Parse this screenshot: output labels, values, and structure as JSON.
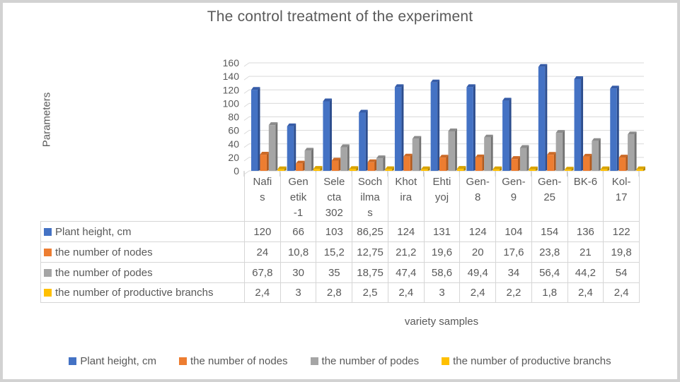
{
  "chart_data": {
    "type": "bar",
    "style": "3d-clustered-column",
    "title": "The control treatment of the experiment",
    "xlabel": "variety samples",
    "ylabel": "Parameters",
    "ylim": [
      0,
      160
    ],
    "yticks": [
      0,
      20,
      40,
      60,
      80,
      100,
      120,
      140,
      160
    ],
    "grid": true,
    "legend_position": "bottom",
    "decimal_separator": ",",
    "categories": [
      "Nafis",
      "Genetik-1",
      "Selecta 302",
      "Sochilmas",
      "Khotira",
      "Ehtiyoj",
      "Gen-8",
      "Gen-9",
      "Gen-25",
      "BK-6",
      "Kol-17"
    ],
    "category_display_lines": [
      [
        "Nafi",
        "s"
      ],
      [
        "Gen",
        "etik",
        "-1"
      ],
      [
        "Sele",
        "cta",
        "302"
      ],
      [
        "Soch",
        "ilma",
        "s"
      ],
      [
        "Khot",
        "ira"
      ],
      [
        "Ehti",
        "yoj"
      ],
      [
        "Gen-",
        "8"
      ],
      [
        "Gen-",
        "9"
      ],
      [
        "Gen-",
        "25"
      ],
      [
        "BK-6"
      ],
      [
        "Kol-",
        "17"
      ]
    ],
    "series": [
      {
        "name": "Plant height, cm",
        "color": "#4472C4",
        "side_color": "#2C4D8E",
        "top_color": "#365CA8",
        "values": [
          120,
          66,
          103,
          86.25,
          124,
          131,
          124,
          104,
          154,
          136,
          122
        ],
        "display": [
          "120",
          "66",
          "103",
          "86,25",
          "124",
          "131",
          "124",
          "104",
          "154",
          "136",
          "122"
        ]
      },
      {
        "name": "the number of nodes",
        "color": "#ED7D31",
        "side_color": "#B25A1D",
        "top_color": "#CC6A27",
        "values": [
          24,
          10.8,
          15.2,
          12.75,
          21.2,
          19.6,
          20,
          17.6,
          23.8,
          21,
          19.8
        ],
        "display": [
          "24",
          "10,8",
          "15,2",
          "12,75",
          "21,2",
          "19,6",
          "20",
          "17,6",
          "23,8",
          "21",
          "19,8"
        ]
      },
      {
        "name": "the number of podes",
        "color": "#A5A5A5",
        "side_color": "#737373",
        "top_color": "#8C8C8C",
        "values": [
          67.8,
          30,
          35,
          18.75,
          47.4,
          58.6,
          49.4,
          34,
          56.4,
          44.2,
          54
        ],
        "display": [
          "67,8",
          "30",
          "35",
          "18,75",
          "47,4",
          "58,6",
          "49,4",
          "34",
          "56,4",
          "44,2",
          "54"
        ]
      },
      {
        "name": "the number of productive branchs",
        "color": "#FFC000",
        "side_color": "#B38600",
        "top_color": "#D9A300",
        "values": [
          2.4,
          3,
          2.8,
          2.5,
          2.4,
          3,
          2.4,
          2.2,
          1.8,
          2.4,
          2.4
        ],
        "display": [
          "2,4",
          "3",
          "2,8",
          "2,5",
          "2,4",
          "3",
          "2,4",
          "2,2",
          "1,8",
          "2,4",
          "2,4"
        ]
      }
    ],
    "colors": {
      "gridline": "#D9D9D9",
      "tick": "#BFBFBF",
      "table_border": "#D6D6D6",
      "text": "#595959"
    }
  }
}
